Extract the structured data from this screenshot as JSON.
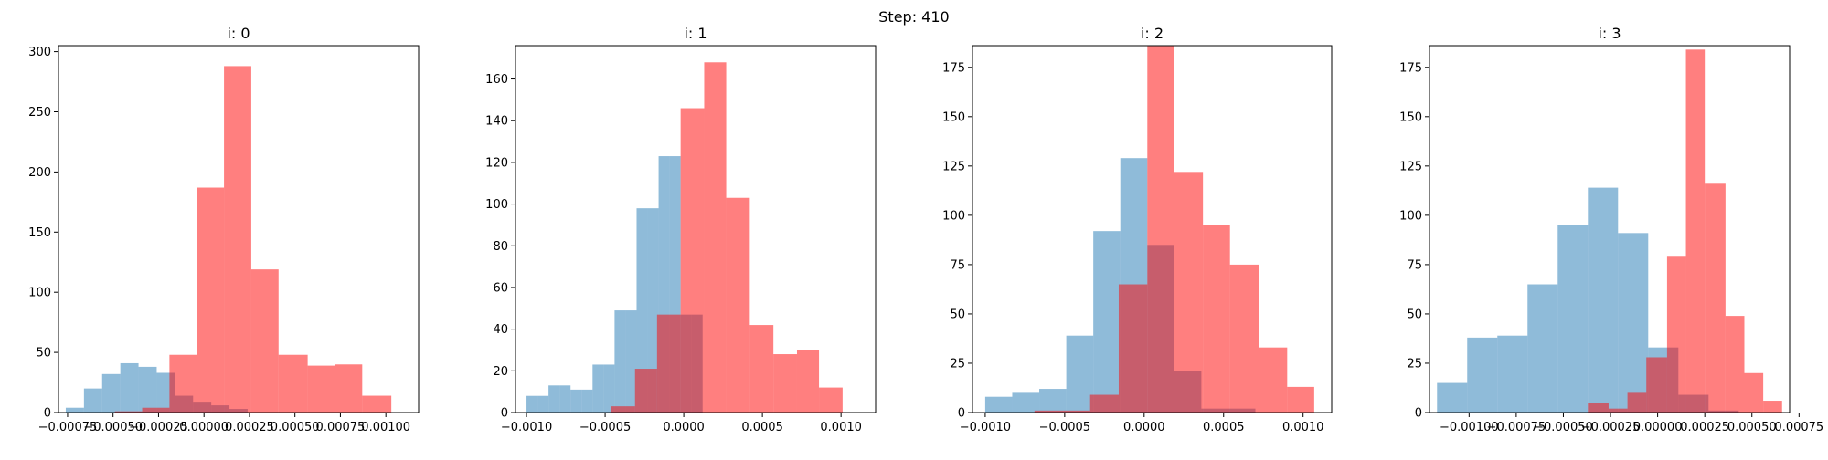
{
  "suptitle": "Step: 410",
  "colors": {
    "blue": "#1f77b4",
    "red": "#ff0000",
    "bar_alpha": 0.5
  },
  "chart_data": [
    {
      "type": "bar",
      "title": "i: 0",
      "xlim": [
        -0.0008,
        0.00118
      ],
      "ylim": [
        0,
        305
      ],
      "xticks": [
        -0.00075,
        -0.0005,
        -0.00025,
        0.0,
        0.00025,
        0.0005,
        0.00075,
        0.001
      ],
      "xtick_labels": [
        "−0.00075",
        "−0.00050",
        "−0.00025",
        "0.00000",
        "0.00025",
        "0.00050",
        "0.00075",
        "0.00100"
      ],
      "yticks": [
        0,
        50,
        100,
        150,
        200,
        250,
        300
      ],
      "ytick_labels": [
        "0",
        "50",
        "100",
        "150",
        "200",
        "250",
        "300"
      ],
      "series": [
        {
          "color": "blue",
          "edges": [
            -0.00076,
            -0.00066,
            -0.00056,
            -0.00046,
            -0.00036,
            -0.00026,
            -0.00016,
            -6e-05,
            4e-05,
            0.00014,
            0.00024
          ],
          "values": [
            4,
            20,
            32,
            41,
            38,
            33,
            14,
            9,
            6,
            3
          ]
        },
        {
          "color": "red",
          "edges": [
            -0.00049,
            -0.00034,
            -0.00019,
            -4e-05,
            0.00011,
            0.00026,
            0.00041,
            0.00057,
            0.00072,
            0.00087,
            0.00103,
            0.00118
          ],
          "values": [
            1,
            4,
            48,
            187,
            288,
            119,
            48,
            39,
            40,
            14,
            0
          ]
        }
      ]
    },
    {
      "type": "bar",
      "title": "i: 1",
      "xlim": [
        -0.00107,
        0.00122
      ],
      "ylim": [
        0,
        176
      ],
      "xticks": [
        -0.001,
        -0.0005,
        0.0,
        0.0005,
        0.001
      ],
      "xtick_labels": [
        "−0.0010",
        "−0.0005",
        "0.0000",
        "0.0005",
        "0.0010"
      ],
      "yticks": [
        0,
        20,
        40,
        60,
        80,
        100,
        120,
        140,
        160
      ],
      "ytick_labels": [
        "0",
        "20",
        "40",
        "60",
        "80",
        "100",
        "120",
        "140",
        "160"
      ],
      "series": [
        {
          "color": "blue",
          "edges": [
            -0.001,
            -0.00093,
            -0.00086,
            -0.00079,
            -0.00072,
            -0.00065,
            -0.00058,
            -0.00051,
            -0.00044,
            -0.00037,
            -0.0003,
            -0.00023,
            -0.00016,
            -9e-05,
            -2e-05,
            5e-05,
            0.00012,
            0.00019,
            0.00026,
            0.00033,
            0.0004
          ],
          "values": [
            8,
            8,
            13,
            13,
            11,
            11,
            23,
            23,
            49,
            49,
            98,
            98,
            123,
            123,
            47,
            47,
            0,
            0,
            0,
            0
          ]
        },
        {
          "color": "red",
          "edges": [
            -0.00046,
            -0.00031,
            -0.00017,
            -2e-05,
            0.00013,
            0.00027,
            0.00042,
            0.00057,
            0.00072,
            0.00086,
            0.00101,
            0.00116
          ],
          "values": [
            3,
            21,
            47,
            146,
            168,
            103,
            42,
            28,
            30,
            12,
            0
          ]
        }
      ]
    },
    {
      "type": "bar",
      "title": "i: 2",
      "xlim": [
        -0.00108,
        0.00118
      ],
      "ylim": [
        0,
        186
      ],
      "xticks": [
        -0.001,
        -0.0005,
        0.0,
        0.0005,
        0.001
      ],
      "xtick_labels": [
        "−0.0010",
        "−0.0005",
        "0.0000",
        "0.0005",
        "0.0010"
      ],
      "yticks": [
        0,
        25,
        50,
        75,
        100,
        125,
        150,
        175
      ],
      "ytick_labels": [
        "0",
        "25",
        "50",
        "75",
        "100",
        "125",
        "150",
        "175"
      ],
      "series": [
        {
          "color": "blue",
          "edges": [
            -0.001,
            -0.00083,
            -0.00066,
            -0.00049,
            -0.00032,
            -0.00015,
            2e-05,
            0.00019,
            0.00036,
            0.00053,
            0.0007
          ],
          "values": [
            8,
            10,
            12,
            39,
            92,
            129,
            85,
            21,
            2,
            2
          ]
        },
        {
          "color": "red",
          "edges": [
            -0.00069,
            -0.00051,
            -0.00034,
            -0.00016,
            2e-05,
            0.00019,
            0.00037,
            0.00054,
            0.00072,
            0.0009,
            0.00107
          ],
          "values": [
            1,
            1,
            9,
            65,
            186,
            122,
            95,
            75,
            33,
            13
          ]
        }
      ]
    },
    {
      "type": "bar",
      "title": "i: 3",
      "xlim": [
        -0.00121,
        0.0007
      ],
      "ylim": [
        0,
        186
      ],
      "xticks": [
        -0.001,
        -0.00075,
        -0.0005,
        -0.00025,
        0.0,
        0.00025,
        0.0005,
        0.00075
      ],
      "xtick_labels": [
        "−0.00100",
        "−0.00075",
        "−0.00050",
        "−0.00025",
        "0.00000",
        "0.00025",
        "0.00050",
        "0.00075"
      ],
      "yticks": [
        0,
        25,
        50,
        75,
        100,
        125,
        150,
        175
      ],
      "ytick_labels": [
        "0",
        "25",
        "50",
        "75",
        "100",
        "125",
        "150",
        "175"
      ],
      "series": [
        {
          "color": "blue",
          "edges": [
            -0.00117,
            -0.00101,
            -0.00085,
            -0.00069,
            -0.00053,
            -0.00037,
            -0.00021,
            -5e-05,
            0.00011,
            0.00027,
            0.00043
          ],
          "values": [
            15,
            38,
            39,
            65,
            95,
            114,
            91,
            33,
            9,
            1
          ]
        },
        {
          "color": "red",
          "edges": [
            -0.00037,
            -0.00026,
            -0.00016,
            -6e-05,
            5e-05,
            0.00015,
            0.00025,
            0.00036,
            0.00046,
            0.00056,
            0.00066
          ],
          "values": [
            5,
            2,
            10,
            28,
            79,
            184,
            116,
            49,
            20,
            6
          ]
        }
      ]
    }
  ]
}
